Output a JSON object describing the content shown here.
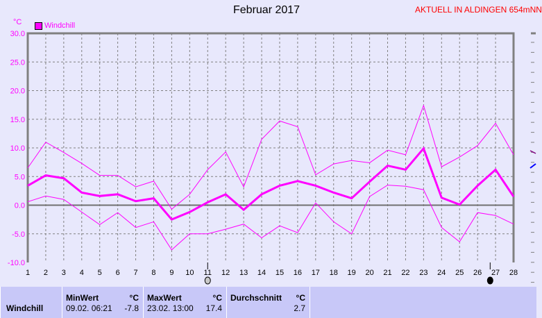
{
  "header": {
    "title": "Februar 2017",
    "station": "AKTUELL IN ALDINGEN 654mNN"
  },
  "chart_data": {
    "type": "line",
    "title": "Februar 2017",
    "ylabel": "°C",
    "ylim": [
      -10,
      30
    ],
    "yticks": [
      "30.0",
      "25.0",
      "20.0",
      "15.0",
      "10.0",
      "5.0",
      "0.0",
      "-5.0",
      "-10.0"
    ],
    "ytick_values": [
      30,
      25,
      20,
      15,
      10,
      5,
      0,
      -5,
      -10
    ],
    "x": [
      1,
      2,
      3,
      4,
      5,
      6,
      7,
      8,
      9,
      10,
      11,
      12,
      13,
      14,
      15,
      16,
      17,
      18,
      19,
      20,
      21,
      22,
      23,
      24,
      25,
      26,
      27,
      28
    ],
    "grid": true,
    "legend": {
      "label": "Windchill",
      "placement": "top-left",
      "color": "#ff00ff"
    },
    "series": [
      {
        "role": "max",
        "color": "#ff00ff",
        "values": [
          6.5,
          11.0,
          9.2,
          7.3,
          5.2,
          5.2,
          3.2,
          4.2,
          -0.7,
          1.9,
          6.2,
          9.3,
          3.2,
          11.5,
          14.7,
          13.7,
          5.3,
          7.2,
          7.8,
          7.4,
          9.6,
          8.8,
          17.4,
          6.7,
          8.4,
          10.4,
          14.3,
          8.8
        ]
      },
      {
        "role": "average",
        "color": "#ff00ff",
        "values": [
          3.4,
          5.2,
          4.7,
          2.2,
          1.6,
          1.9,
          0.7,
          1.2,
          -2.5,
          -1.2,
          0.5,
          1.9,
          -0.8,
          1.9,
          3.4,
          4.2,
          3.4,
          2.2,
          1.2,
          4.1,
          6.9,
          6.2,
          9.9,
          1.3,
          0.1,
          3.4,
          6.2,
          1.5
        ]
      },
      {
        "role": "min",
        "color": "#ff00ff",
        "values": [
          0.6,
          1.6,
          1.0,
          -1.2,
          -3.4,
          -1.3,
          -3.9,
          -2.9,
          -7.8,
          -5.0,
          -5.0,
          -4.2,
          -3.3,
          -5.7,
          -3.6,
          -4.8,
          0.4,
          -2.9,
          -5.0,
          1.5,
          3.5,
          3.3,
          2.7,
          -3.9,
          -6.4,
          -1.3,
          -1.8,
          -3.3
        ]
      }
    ],
    "moon_phases": [
      {
        "day": 11,
        "phase": "full-moon"
      },
      {
        "day": 26.7,
        "phase": "new-moon"
      }
    ]
  },
  "table": {
    "row_label": "Windchill",
    "min": {
      "header": "MinWert",
      "unit": "°C",
      "time": "09.02.  06:21",
      "value": "-7.8"
    },
    "max": {
      "header": "MaxWert",
      "unit": "°C",
      "time": "23.02.  13:00",
      "value": "17.4"
    },
    "avg": {
      "header": "Durchschnitt",
      "unit": "°C",
      "value": "2.7"
    }
  }
}
